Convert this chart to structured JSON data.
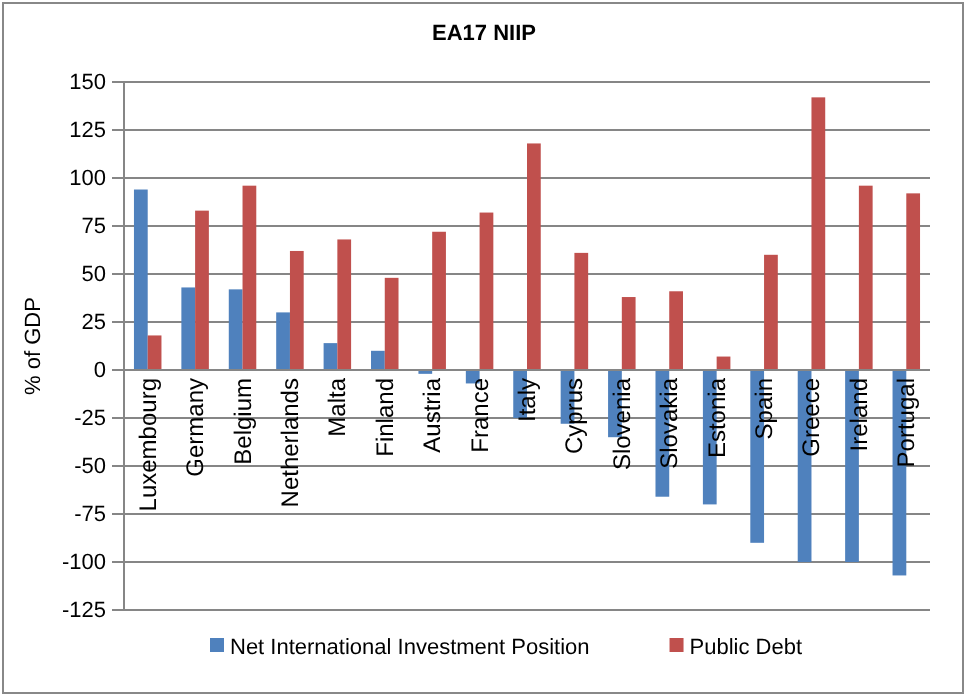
{
  "chart_data": {
    "type": "bar",
    "title": "EA17 NIIP",
    "ylabel": "% of GDP",
    "categories": [
      "Luxembourg",
      "Germany",
      "Belgium",
      "Netherlands",
      "Malta",
      "Finland",
      "Austria",
      "France",
      "Italy",
      "Cyprus",
      "Slovenia",
      "Slovakia",
      "Estonia",
      "Spain",
      "Greece",
      "Ireland",
      "Portugal"
    ],
    "series": [
      {
        "name": "Net International Investment Position",
        "color": "#4f81bd",
        "values": [
          94,
          43,
          42,
          30,
          14,
          10,
          -2,
          -7,
          -25,
          -28,
          -35,
          -66,
          -70,
          -90,
          -100,
          -100,
          -107
        ]
      },
      {
        "name": "Public Debt",
        "color": "#c0504d",
        "values": [
          18,
          83,
          96,
          62,
          68,
          48,
          72,
          82,
          118,
          61,
          38,
          41,
          7,
          60,
          142,
          96,
          92
        ]
      }
    ],
    "ylim": [
      -125,
      150
    ],
    "yticks": [
      -125,
      -100,
      -75,
      -50,
      -25,
      0,
      25,
      50,
      75,
      100,
      125,
      150
    ],
    "grid": "y",
    "legend": "bottom"
  }
}
